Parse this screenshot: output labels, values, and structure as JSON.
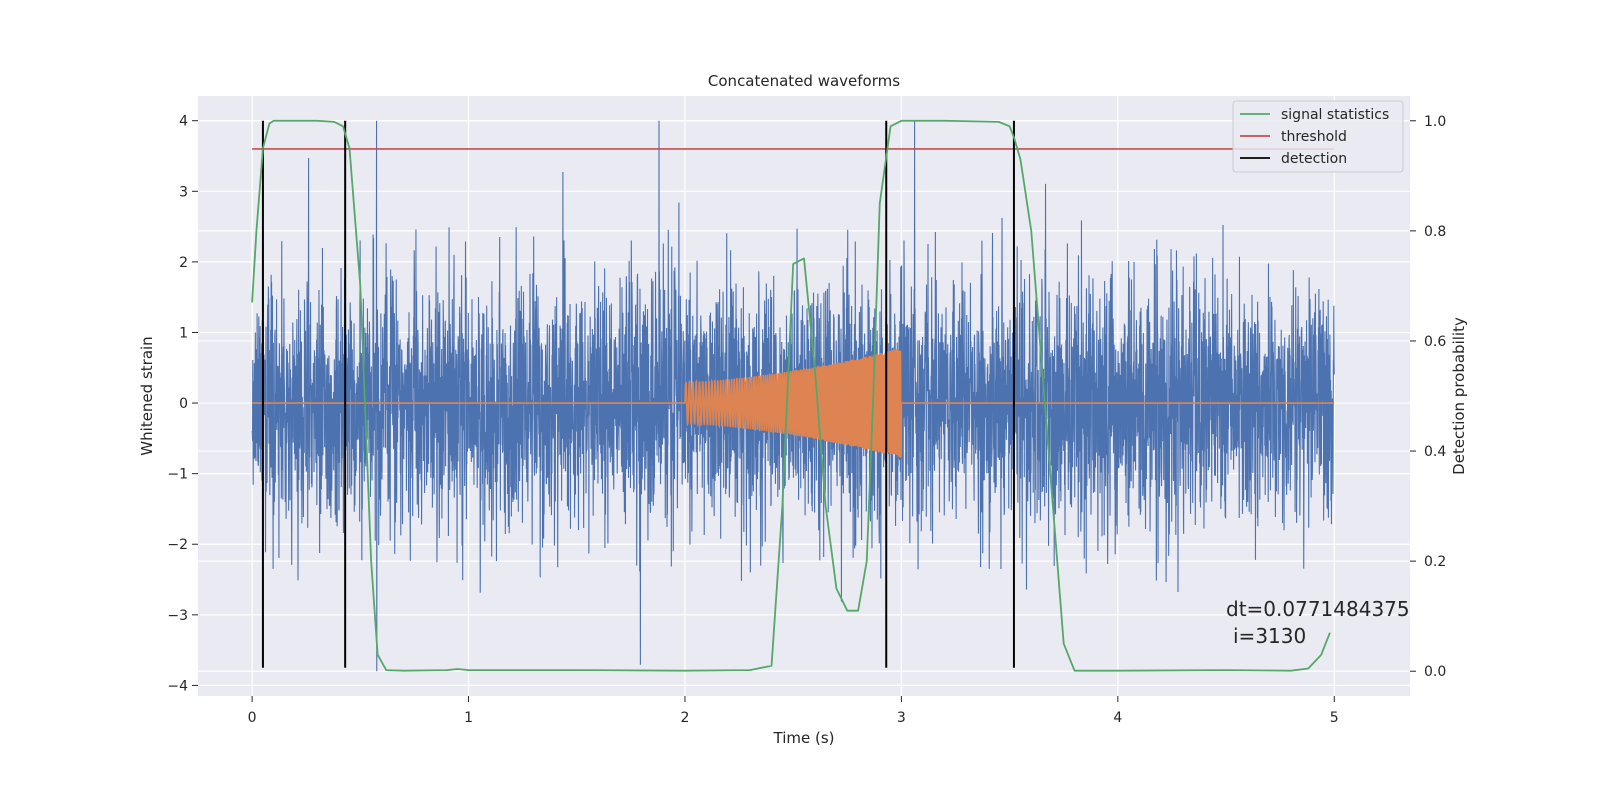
{
  "chart_data": {
    "type": "line",
    "title": "Concatenated waveforms",
    "xlabel": "Time (s)",
    "ylabel": "Whitened strain",
    "y2label": "Detection probability",
    "xlim": [
      -0.25,
      5.35
    ],
    "ylim": [
      -4.15,
      4.35
    ],
    "y2lim": [
      -0.045,
      1.045
    ],
    "xticks": [
      "0",
      "1",
      "2",
      "3",
      "4",
      "5"
    ],
    "yticks": [
      "4",
      "3",
      "2",
      "1",
      "0",
      "−1",
      "−2",
      "−3",
      "−4"
    ],
    "y2ticks": [
      "1.0",
      "0.8",
      "0.6",
      "0.4",
      "0.2",
      "0.0"
    ],
    "grid": true,
    "legend_position": "top-right",
    "legend": [
      "signal statistics",
      "threshold",
      "detection"
    ],
    "annotation": {
      "line1": "dt=0.0771484375",
      "line2": "i=3130"
    },
    "colors": {
      "noise": "#4c72b0",
      "injection": "#dd8452",
      "statistic": "#55a868",
      "threshold": "#c44e52",
      "detection": "#000000",
      "background": "#eaeaf2",
      "grid": "#ffffff"
    },
    "series": [
      {
        "label_key": "noise",
        "role": "whitened strain noise",
        "axis": "left",
        "x_range": [
          0,
          5
        ],
        "std": 0.85,
        "max": 4.0,
        "min": -3.8
      },
      {
        "label_key": "injection",
        "role": "injected waveform",
        "axis": "left",
        "x": [
          0,
          2.0,
          2.0,
          2.5,
          3.0,
          3.0,
          5.0
        ],
        "envelope": [
          0,
          0,
          0.3,
          0.45,
          0.78,
          0,
          0
        ]
      },
      {
        "name": "signal statistics",
        "axis": "right",
        "x": [
          0.0,
          0.02,
          0.05,
          0.08,
          0.1,
          0.15,
          0.3,
          0.38,
          0.42,
          0.45,
          0.5,
          0.55,
          0.58,
          0.62,
          0.7,
          0.9,
          0.95,
          1.0,
          1.5,
          2.0,
          2.3,
          2.4,
          2.45,
          2.5,
          2.55,
          2.6,
          2.65,
          2.7,
          2.75,
          2.8,
          2.84,
          2.87,
          2.9,
          2.95,
          3.0,
          3.2,
          3.45,
          3.5,
          3.52,
          3.55,
          3.6,
          3.65,
          3.7,
          3.75,
          3.8,
          4.0,
          4.5,
          4.8,
          4.88,
          4.94,
          4.98
        ],
        "values": [
          0.67,
          0.8,
          0.95,
          0.995,
          1.0,
          1.0,
          1.0,
          0.998,
          0.99,
          0.95,
          0.7,
          0.2,
          0.03,
          0.002,
          0.001,
          0.002,
          0.004,
          0.002,
          0.002,
          0.001,
          0.002,
          0.01,
          0.3,
          0.74,
          0.75,
          0.55,
          0.3,
          0.15,
          0.11,
          0.11,
          0.2,
          0.5,
          0.85,
          0.99,
          1.0,
          1.0,
          0.998,
          0.99,
          0.97,
          0.93,
          0.8,
          0.55,
          0.3,
          0.05,
          0.001,
          0.001,
          0.002,
          0.001,
          0.005,
          0.03,
          0.07
        ]
      },
      {
        "name": "threshold",
        "axis": "left",
        "x": [
          0,
          5
        ],
        "values": [
          3.6,
          3.6
        ]
      }
    ],
    "detections": [
      0.05,
      0.43,
      2.93,
      3.52
    ]
  }
}
